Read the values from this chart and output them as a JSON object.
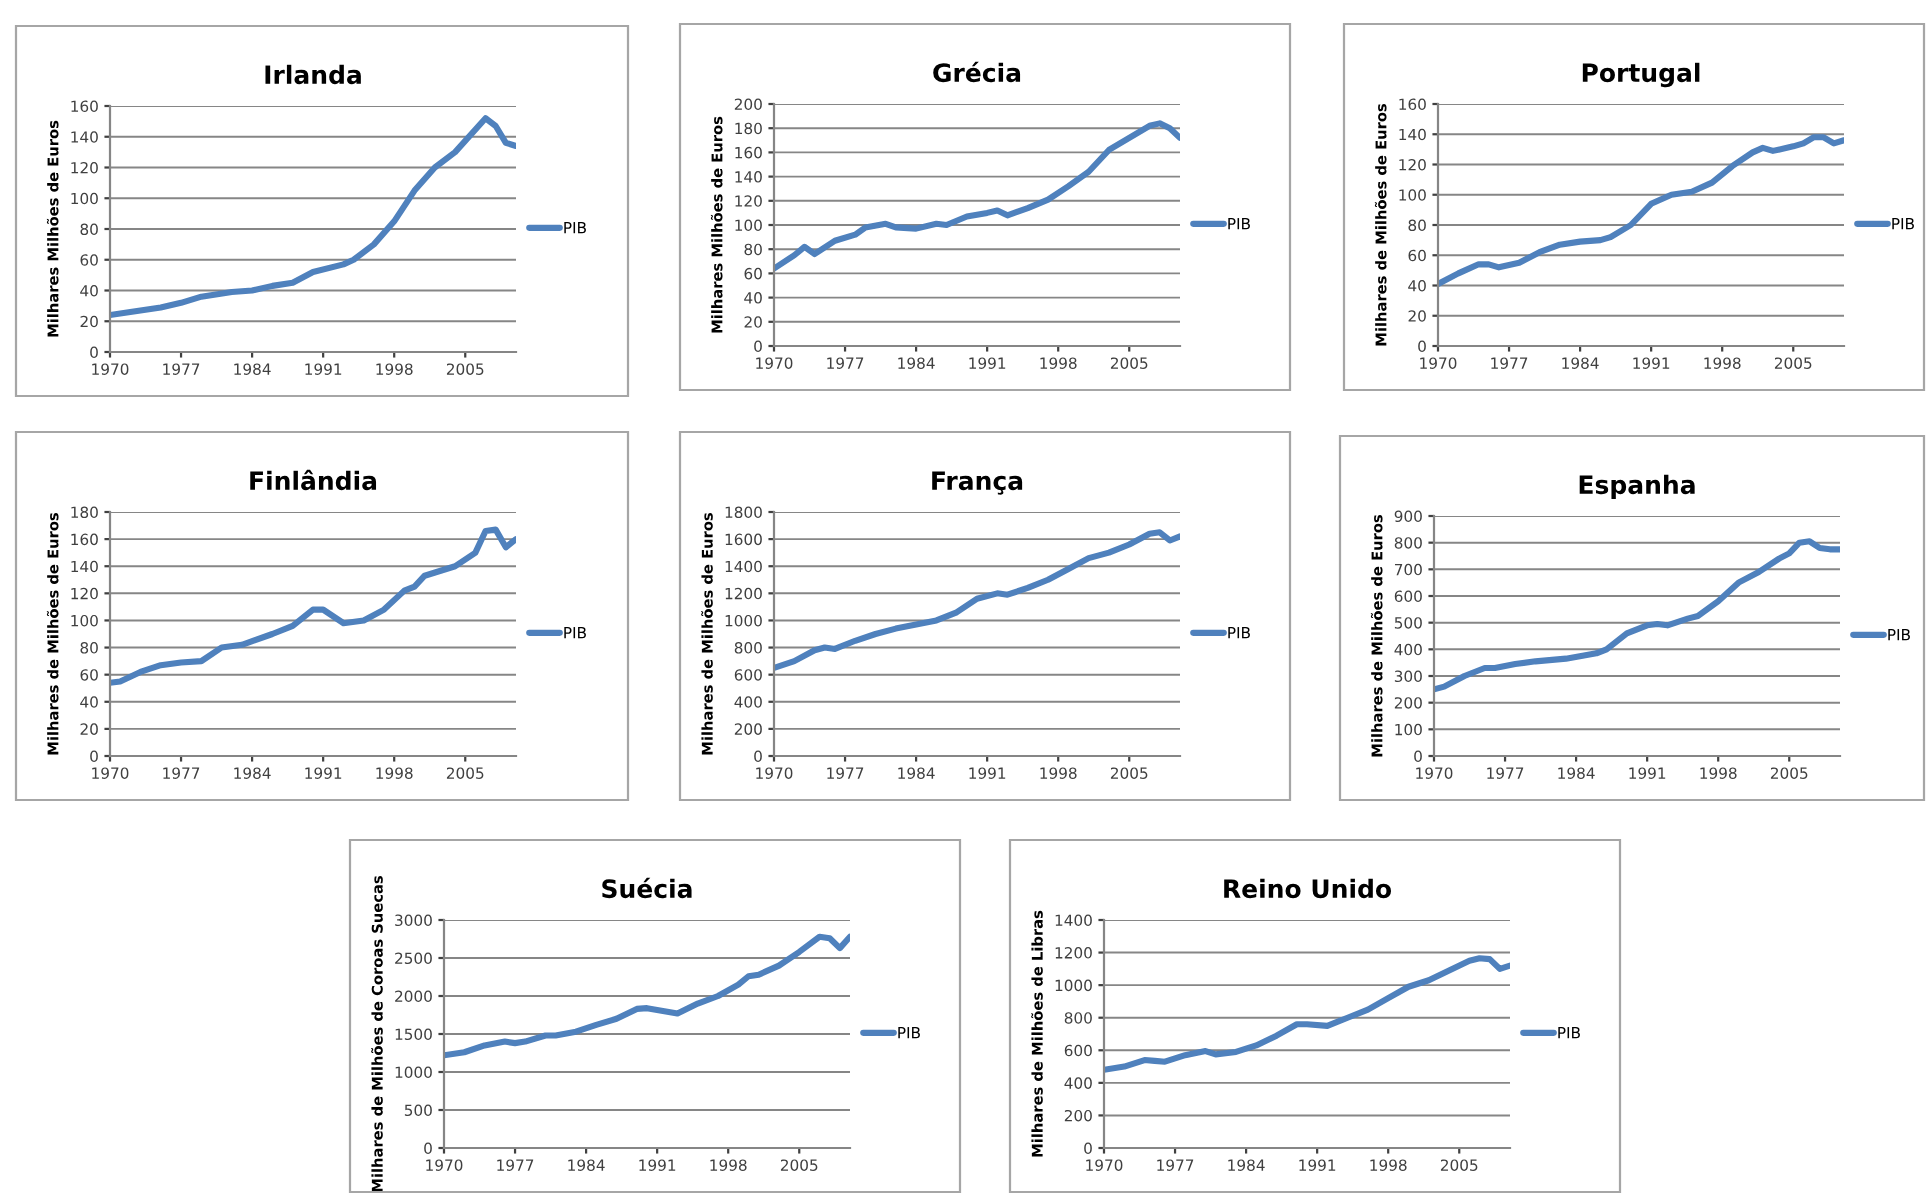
{
  "chart_data": [
    {
      "type": "line",
      "title": "Irlanda",
      "ylabel": "Milhares Milhões de Euros",
      "xlim": [
        1970,
        2010
      ],
      "xticks": [
        1970,
        1977,
        1984,
        1991,
        1998,
        2005
      ],
      "ylim": [
        0,
        160
      ],
      "yticks": [
        0,
        20,
        40,
        60,
        80,
        100,
        120,
        140,
        160
      ],
      "grid": "y",
      "legend": "right",
      "x": [
        1970,
        1972,
        1975,
        1977,
        1979,
        1982,
        1984,
        1986,
        1988,
        1990,
        1993,
        1994,
        1996,
        1998,
        2000,
        2002,
        2004,
        2007,
        2008,
        2009,
        2010
      ],
      "series": [
        {
          "name": "PIB",
          "color": "#4f81bd",
          "values": [
            24,
            26,
            29,
            32,
            36,
            39,
            40,
            43,
            45,
            52,
            57,
            60,
            70,
            85,
            105,
            120,
            130,
            152,
            147,
            136,
            134
          ]
        }
      ]
    },
    {
      "type": "line",
      "title": "Grécia",
      "ylabel": "Milhares Milhões de Euros",
      "xlim": [
        1970,
        2010
      ],
      "xticks": [
        1970,
        1977,
        1984,
        1991,
        1998,
        2005
      ],
      "ylim": [
        0,
        200
      ],
      "yticks": [
        0,
        20,
        40,
        60,
        80,
        100,
        120,
        140,
        160,
        180,
        200
      ],
      "grid": "y",
      "legend": "right",
      "x": [
        1970,
        1972,
        1973,
        1974,
        1976,
        1978,
        1979,
        1981,
        1982,
        1984,
        1986,
        1987,
        1989,
        1991,
        1992,
        1993,
        1995,
        1997,
        1999,
        2001,
        2003,
        2005,
        2007,
        2008,
        2009,
        2010
      ],
      "series": [
        {
          "name": "PIB",
          "color": "#4f81bd",
          "values": [
            64,
            75,
            82,
            76,
            87,
            92,
            98,
            101,
            98,
            97,
            101,
            100,
            107,
            110,
            112,
            108,
            114,
            121,
            132,
            144,
            162,
            172,
            182,
            184,
            180,
            172
          ]
        }
      ]
    },
    {
      "type": "line",
      "title": "Portugal",
      "ylabel": "Milhares de Milhões de Euros",
      "xlim": [
        1970,
        2010
      ],
      "xticks": [
        1970,
        1977,
        1984,
        1991,
        1998,
        2005
      ],
      "ylim": [
        0,
        160
      ],
      "yticks": [
        0,
        20,
        40,
        60,
        80,
        100,
        120,
        140,
        160
      ],
      "grid": "y",
      "legend": "right",
      "x": [
        1970,
        1972,
        1974,
        1975,
        1976,
        1978,
        1980,
        1982,
        1984,
        1986,
        1987,
        1989,
        1991,
        1993,
        1995,
        1997,
        1999,
        2001,
        2002,
        2003,
        2005,
        2006,
        2007,
        2008,
        2009,
        2010
      ],
      "series": [
        {
          "name": "PIB",
          "color": "#4f81bd",
          "values": [
            41,
            48,
            54,
            54,
            52,
            55,
            62,
            67,
            69,
            70,
            72,
            80,
            94,
            100,
            102,
            108,
            119,
            128,
            131,
            129,
            132,
            134,
            138,
            138,
            134,
            136
          ]
        }
      ]
    },
    {
      "type": "line",
      "title": "Finlândia",
      "ylabel": "Milhares de Milhões de Euros",
      "xlim": [
        1970,
        2010
      ],
      "xticks": [
        1970,
        1977,
        1984,
        1991,
        1998,
        2005
      ],
      "ylim": [
        0,
        180
      ],
      "yticks": [
        0,
        20,
        40,
        60,
        80,
        100,
        120,
        140,
        160,
        180
      ],
      "grid": "y",
      "legend": "right",
      "x": [
        1970,
        1971,
        1973,
        1975,
        1977,
        1979,
        1981,
        1983,
        1986,
        1988,
        1990,
        1991,
        1993,
        1995,
        1997,
        1999,
        2000,
        2001,
        2004,
        2006,
        2007,
        2008,
        2009,
        2010
      ],
      "series": [
        {
          "name": "PIB",
          "color": "#4f81bd",
          "values": [
            54,
            55,
            62,
            67,
            69,
            70,
            80,
            82,
            90,
            96,
            108,
            108,
            98,
            100,
            108,
            122,
            125,
            133,
            140,
            150,
            166,
            167,
            154,
            160
          ]
        }
      ]
    },
    {
      "type": "line",
      "title": "França",
      "ylabel": "Milhares de Milhões de Euros",
      "xlim": [
        1970,
        2010
      ],
      "xticks": [
        1970,
        1977,
        1984,
        1991,
        1998,
        2005
      ],
      "ylim": [
        0,
        1800
      ],
      "yticks": [
        0,
        200,
        400,
        600,
        800,
        1000,
        1200,
        1400,
        1600,
        1800
      ],
      "grid": "y",
      "legend": "right",
      "x": [
        1970,
        1972,
        1974,
        1975,
        1976,
        1978,
        1980,
        1982,
        1984,
        1986,
        1988,
        1990,
        1992,
        1993,
        1995,
        1997,
        1999,
        2001,
        2003,
        2005,
        2007,
        2008,
        2009,
        2010
      ],
      "series": [
        {
          "name": "PIB",
          "color": "#4f81bd",
          "values": [
            650,
            700,
            780,
            800,
            790,
            850,
            900,
            940,
            970,
            1000,
            1060,
            1160,
            1200,
            1190,
            1240,
            1300,
            1380,
            1460,
            1500,
            1560,
            1640,
            1650,
            1590,
            1620
          ]
        }
      ]
    },
    {
      "type": "line",
      "title": "Espanha",
      "ylabel": "Milhares de Milhões de Euros",
      "xlim": [
        1970,
        2010
      ],
      "xticks": [
        1970,
        1977,
        1984,
        1991,
        1998,
        2005
      ],
      "ylim": [
        0,
        900
      ],
      "yticks": [
        0,
        100,
        200,
        300,
        400,
        500,
        600,
        700,
        800,
        900
      ],
      "grid": "y",
      "legend": "right",
      "x": [
        1970,
        1971,
        1973,
        1975,
        1976,
        1978,
        1980,
        1983,
        1986,
        1987,
        1989,
        1991,
        1992,
        1993,
        1995,
        1996,
        1998,
        2000,
        2002,
        2004,
        2005,
        2006,
        2007,
        2008,
        2009,
        2010
      ],
      "series": [
        {
          "name": "PIB",
          "color": "#4f81bd",
          "values": [
            250,
            260,
            300,
            330,
            330,
            345,
            355,
            365,
            385,
            400,
            460,
            490,
            495,
            490,
            515,
            525,
            580,
            650,
            690,
            740,
            760,
            800,
            805,
            780,
            775,
            775
          ]
        }
      ]
    },
    {
      "type": "line",
      "title": "Suécia",
      "ylabel": "Milhares de Milhões de Coroas Suecas",
      "xlim": [
        1970,
        2010
      ],
      "xticks": [
        1970,
        1977,
        1984,
        1991,
        1998,
        2005
      ],
      "ylim": [
        0,
        3000
      ],
      "yticks": [
        0,
        500,
        1000,
        1500,
        2000,
        2500,
        3000
      ],
      "grid": "y",
      "legend": "right",
      "x": [
        1970,
        1972,
        1974,
        1976,
        1977,
        1978,
        1980,
        1981,
        1983,
        1985,
        1987,
        1989,
        1990,
        1993,
        1995,
        1997,
        1999,
        2000,
        2001,
        2003,
        2005,
        2007,
        2008,
        2009,
        2010
      ],
      "series": [
        {
          "name": "PIB",
          "color": "#4f81bd",
          "values": [
            1220,
            1260,
            1350,
            1400,
            1380,
            1400,
            1480,
            1480,
            1530,
            1620,
            1700,
            1830,
            1840,
            1770,
            1900,
            2000,
            2150,
            2260,
            2280,
            2400,
            2580,
            2780,
            2760,
            2630,
            2780
          ]
        }
      ]
    },
    {
      "type": "line",
      "title": "Reino Unido",
      "ylabel": "Milhares de Milhões de Libras",
      "xlim": [
        1970,
        2010
      ],
      "xticks": [
        1970,
        1977,
        1984,
        1991,
        1998,
        2005
      ],
      "ylim": [
        0,
        1400
      ],
      "yticks": [
        0,
        200,
        400,
        600,
        800,
        1000,
        1200,
        1400
      ],
      "grid": "y",
      "legend": "right",
      "x": [
        1970,
        1972,
        1974,
        1975,
        1976,
        1978,
        1980,
        1981,
        1983,
        1985,
        1987,
        1989,
        1990,
        1992,
        1994,
        1996,
        1998,
        2000,
        2002,
        2004,
        2006,
        2007,
        2008,
        2009,
        2010
      ],
      "series": [
        {
          "name": "PIB",
          "color": "#4f81bd",
          "values": [
            480,
            500,
            540,
            535,
            530,
            570,
            595,
            575,
            590,
            630,
            690,
            760,
            760,
            750,
            800,
            850,
            920,
            990,
            1030,
            1090,
            1150,
            1165,
            1160,
            1100,
            1120
          ]
        }
      ]
    }
  ]
}
